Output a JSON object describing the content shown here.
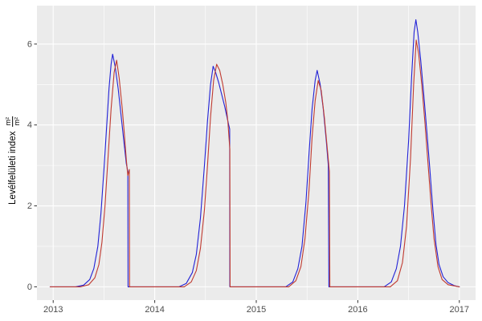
{
  "chart_data": {
    "type": "line",
    "title": "",
    "xlabel": "",
    "ylabel": {
      "text": "Levélfelületi index",
      "fraction_numerator": "m²",
      "fraction_denominator": "m²"
    },
    "legend": "none",
    "grid": "on",
    "panel_bg": "#EBEBEB",
    "grid_color": "#FFFFFF",
    "tick_color": "#333333",
    "tick_label_color": "#4D4D4D",
    "xlim": [
      2012.84,
      2017.16
    ],
    "ylim": [
      -0.33,
      6.95
    ],
    "x_ticks": [
      2013,
      2014,
      2015,
      2016,
      2017
    ],
    "y_ticks": [
      0,
      2,
      4,
      6
    ],
    "x_minor": [
      2013.5,
      2014.5,
      2015.5,
      2016.5
    ],
    "y_minor": [
      1,
      3,
      5
    ],
    "series": [
      {
        "name": "simulated-blue",
        "color": "#2121D6",
        "width": 1.1,
        "points": [
          [
            2012.97,
            0
          ],
          [
            2013.22,
            0
          ],
          [
            2013.3,
            0.04
          ],
          [
            2013.36,
            0.18
          ],
          [
            2013.4,
            0.45
          ],
          [
            2013.44,
            1.0
          ],
          [
            2013.47,
            1.8
          ],
          [
            2013.5,
            2.9
          ],
          [
            2013.53,
            4.1
          ],
          [
            2013.55,
            4.9
          ],
          [
            2013.57,
            5.5
          ],
          [
            2013.585,
            5.75
          ],
          [
            2013.61,
            5.45
          ],
          [
            2013.64,
            4.9
          ],
          [
            2013.67,
            4.2
          ],
          [
            2013.7,
            3.5
          ],
          [
            2013.72,
            3.05
          ],
          [
            2013.735,
            2.85
          ],
          [
            2013.737,
            0
          ],
          [
            2014.24,
            0
          ],
          [
            2014.31,
            0.08
          ],
          [
            2014.37,
            0.35
          ],
          [
            2014.41,
            0.8
          ],
          [
            2014.45,
            1.7
          ],
          [
            2014.49,
            3.0
          ],
          [
            2014.52,
            4.1
          ],
          [
            2014.55,
            5.0
          ],
          [
            2014.575,
            5.45
          ],
          [
            2014.6,
            5.3
          ],
          [
            2014.63,
            5.05
          ],
          [
            2014.66,
            4.75
          ],
          [
            2014.69,
            4.45
          ],
          [
            2014.72,
            4.1
          ],
          [
            2014.738,
            3.9
          ],
          [
            2014.74,
            0
          ],
          [
            2015.29,
            0
          ],
          [
            2015.36,
            0.12
          ],
          [
            2015.41,
            0.45
          ],
          [
            2015.45,
            1.0
          ],
          [
            2015.49,
            2.1
          ],
          [
            2015.52,
            3.3
          ],
          [
            2015.55,
            4.4
          ],
          [
            2015.58,
            5.1
          ],
          [
            2015.6,
            5.35
          ],
          [
            2015.63,
            5.0
          ],
          [
            2015.66,
            4.4
          ],
          [
            2015.69,
            3.6
          ],
          [
            2015.71,
            3.0
          ],
          [
            2015.715,
            0
          ],
          [
            2016.26,
            0
          ],
          [
            2016.33,
            0.12
          ],
          [
            2016.38,
            0.45
          ],
          [
            2016.42,
            1.0
          ],
          [
            2016.46,
            2.0
          ],
          [
            2016.5,
            3.6
          ],
          [
            2016.53,
            5.2
          ],
          [
            2016.555,
            6.3
          ],
          [
            2016.572,
            6.6
          ],
          [
            2016.59,
            6.3
          ],
          [
            2016.62,
            5.6
          ],
          [
            2016.65,
            4.75
          ],
          [
            2016.68,
            3.85
          ],
          [
            2016.71,
            2.9
          ],
          [
            2016.74,
            1.9
          ],
          [
            2016.77,
            1.05
          ],
          [
            2016.8,
            0.55
          ],
          [
            2016.84,
            0.25
          ],
          [
            2016.89,
            0.1
          ],
          [
            2016.95,
            0.03
          ],
          [
            2017.0,
            0
          ]
        ]
      },
      {
        "name": "observed-red",
        "color": "#C03A30",
        "width": 1.1,
        "points": [
          [
            2012.97,
            0
          ],
          [
            2013.27,
            0
          ],
          [
            2013.35,
            0.05
          ],
          [
            2013.41,
            0.22
          ],
          [
            2013.45,
            0.55
          ],
          [
            2013.48,
            1.1
          ],
          [
            2013.51,
            2.0
          ],
          [
            2013.54,
            3.2
          ],
          [
            2013.57,
            4.4
          ],
          [
            2013.6,
            5.3
          ],
          [
            2013.625,
            5.6
          ],
          [
            2013.65,
            5.15
          ],
          [
            2013.68,
            4.4
          ],
          [
            2013.7,
            3.8
          ],
          [
            2013.72,
            3.15
          ],
          [
            2013.735,
            2.75
          ],
          [
            2013.75,
            2.9
          ],
          [
            2013.752,
            0
          ],
          [
            2014.29,
            0
          ],
          [
            2014.36,
            0.12
          ],
          [
            2014.41,
            0.4
          ],
          [
            2014.45,
            0.95
          ],
          [
            2014.49,
            1.9
          ],
          [
            2014.52,
            3.0
          ],
          [
            2014.55,
            4.2
          ],
          [
            2014.58,
            5.1
          ],
          [
            2014.61,
            5.5
          ],
          [
            2014.64,
            5.35
          ],
          [
            2014.67,
            5.0
          ],
          [
            2014.7,
            4.55
          ],
          [
            2014.72,
            4.1
          ],
          [
            2014.74,
            3.4
          ],
          [
            2014.742,
            0
          ],
          [
            2015.32,
            0
          ],
          [
            2015.39,
            0.15
          ],
          [
            2015.44,
            0.5
          ],
          [
            2015.48,
            1.2
          ],
          [
            2015.52,
            2.4
          ],
          [
            2015.55,
            3.7
          ],
          [
            2015.58,
            4.6
          ],
          [
            2015.61,
            5.1
          ],
          [
            2015.64,
            4.85
          ],
          [
            2015.67,
            4.2
          ],
          [
            2015.7,
            3.4
          ],
          [
            2015.72,
            2.85
          ],
          [
            2015.725,
            0
          ],
          [
            2016.32,
            0
          ],
          [
            2016.39,
            0.15
          ],
          [
            2016.44,
            0.6
          ],
          [
            2016.48,
            1.5
          ],
          [
            2016.52,
            3.2
          ],
          [
            2016.55,
            5.0
          ],
          [
            2016.575,
            6.1
          ],
          [
            2016.6,
            5.75
          ],
          [
            2016.63,
            5.0
          ],
          [
            2016.66,
            4.1
          ],
          [
            2016.69,
            3.1
          ],
          [
            2016.72,
            2.1
          ],
          [
            2016.75,
            1.2
          ],
          [
            2016.79,
            0.5
          ],
          [
            2016.83,
            0.18
          ],
          [
            2016.89,
            0.05
          ],
          [
            2017.0,
            0
          ]
        ]
      }
    ]
  }
}
